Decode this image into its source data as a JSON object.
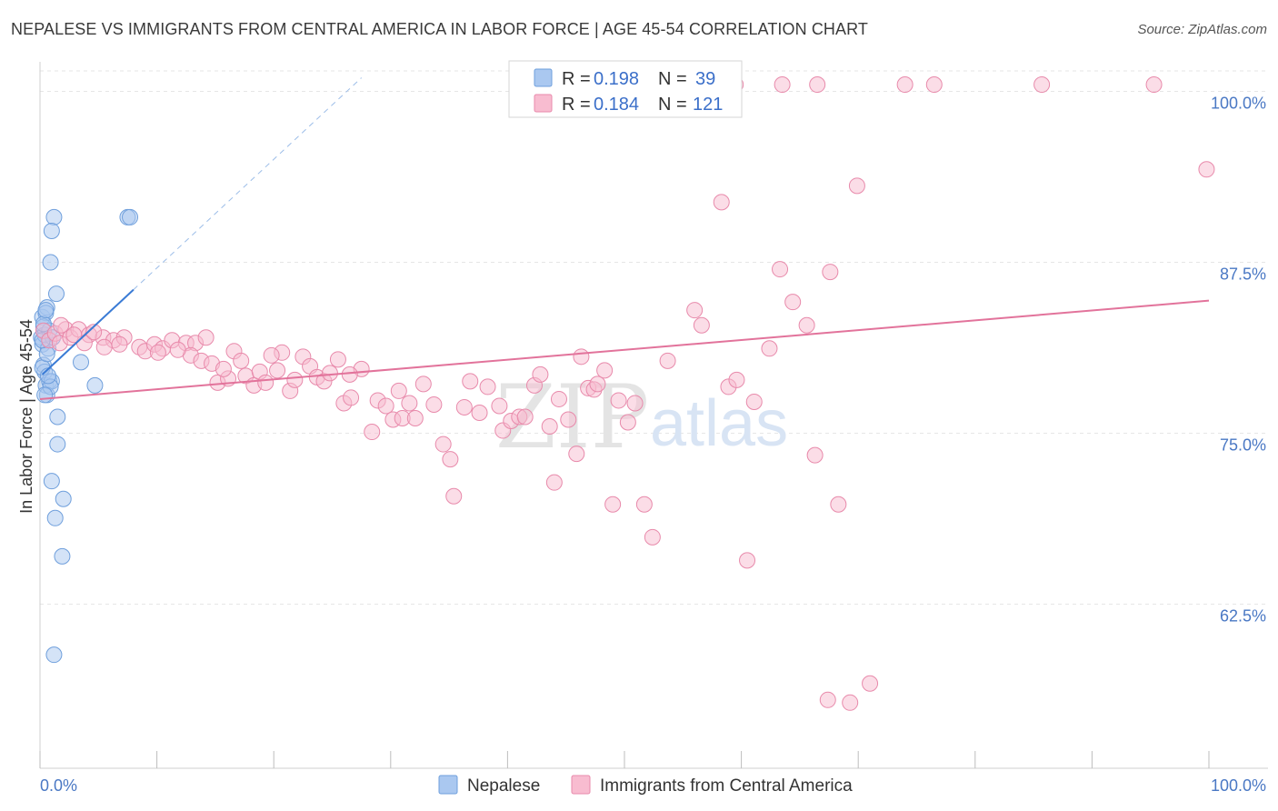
{
  "header": {
    "title": "NEPALESE VS IMMIGRANTS FROM CENTRAL AMERICA IN LABOR FORCE | AGE 45-54 CORRELATION CHART",
    "source": "Source: ZipAtlas.com"
  },
  "watermark": {
    "zip": "ZIP",
    "atlas": "atlas"
  },
  "legend": {
    "rows": [
      {
        "r_label": "R = ",
        "r_value": "0.198",
        "n_label": "N = ",
        "n_value": "39",
        "color": "#aac8f0",
        "stroke": "#6f9fdc"
      },
      {
        "r_label": "R = ",
        "r_value": "0.184",
        "n_label": "N = ",
        "n_value": "121",
        "color": "#f8bcd0",
        "stroke": "#e88aab"
      }
    ]
  },
  "bottom_legend": [
    {
      "label": "Nepalese",
      "color": "#aac8f0",
      "stroke": "#6f9fdc"
    },
    {
      "label": "Immigrants from Central America",
      "color": "#f8bcd0",
      "stroke": "#e88aab"
    }
  ],
  "chart_data": {
    "type": "scatter",
    "title": "NEPALESE VS IMMIGRANTS FROM CENTRAL AMERICA IN LABOR FORCE | AGE 45-54 CORRELATION CHART",
    "xlabel": "",
    "ylabel": "In Labor Force | Age 45-54",
    "xlim": [
      0,
      100
    ],
    "ylim": [
      50.5,
      101.5
    ],
    "x_tick_labels": [
      "0.0%",
      "100.0%"
    ],
    "y_ticks": [
      62.5,
      75.0,
      87.5,
      100.0
    ],
    "y_tick_labels": [
      "62.5%",
      "75.0%",
      "87.5%",
      "100.0%"
    ],
    "grid": true,
    "series": [
      {
        "name": "Nepalese",
        "color": "#aac8f0",
        "stroke": "#6f9fdc",
        "trend_color": "#3a7bd5",
        "trend": {
          "x0": 0.2,
          "y0": 79.3,
          "x1": 8.0,
          "y1": 85.5,
          "dash_to_x": 27.5,
          "dash_to_y": 101.0
        },
        "points": [
          [
            0.1,
            82.0
          ],
          [
            0.2,
            81.5
          ],
          [
            0.3,
            80.0
          ],
          [
            0.4,
            79.5
          ],
          [
            0.5,
            78.5
          ],
          [
            0.2,
            83.5
          ],
          [
            0.6,
            84.2
          ],
          [
            0.5,
            83.8
          ],
          [
            0.3,
            82.8
          ],
          [
            0.7,
            81.2
          ],
          [
            0.8,
            78.8
          ],
          [
            1.0,
            78.8
          ],
          [
            1.2,
            90.8
          ],
          [
            1.0,
            89.8
          ],
          [
            0.9,
            87.5
          ],
          [
            1.4,
            85.2
          ],
          [
            0.6,
            77.8
          ],
          [
            1.5,
            76.2
          ],
          [
            1.5,
            74.2
          ],
          [
            1.0,
            71.5
          ],
          [
            2.0,
            70.2
          ],
          [
            1.3,
            68.8
          ],
          [
            1.9,
            66.0
          ],
          [
            1.2,
            58.8
          ],
          [
            3.5,
            80.2
          ],
          [
            4.7,
            78.5
          ],
          [
            7.5,
            90.8
          ],
          [
            7.7,
            90.8
          ],
          [
            0.2,
            79.8
          ],
          [
            0.4,
            82.2
          ],
          [
            0.8,
            82.5
          ],
          [
            0.9,
            78.4
          ],
          [
            0.3,
            83.0
          ],
          [
            0.6,
            80.8
          ],
          [
            1.1,
            82.0
          ],
          [
            0.5,
            84.0
          ],
          [
            0.2,
            81.8
          ],
          [
            0.7,
            79.2
          ],
          [
            0.4,
            77.8
          ]
        ]
      },
      {
        "name": "Immigrants from Central America",
        "color": "#f8bcd0",
        "stroke": "#e88aab",
        "trend_color": "#e2739b",
        "trend": {
          "x0": 0.0,
          "y0": 77.5,
          "x1": 100.0,
          "y1": 84.7
        },
        "points": [
          [
            0.3,
            82.5
          ],
          [
            0.8,
            81.8
          ],
          [
            1.3,
            82.3
          ],
          [
            1.7,
            81.6
          ],
          [
            2.2,
            82.6
          ],
          [
            2.6,
            82.0
          ],
          [
            3.3,
            82.6
          ],
          [
            4.2,
            82.2
          ],
          [
            5.4,
            82.0
          ],
          [
            6.3,
            81.8
          ],
          [
            7.2,
            82.0
          ],
          [
            8.5,
            81.3
          ],
          [
            9.0,
            81.0
          ],
          [
            9.8,
            81.5
          ],
          [
            10.5,
            81.2
          ],
          [
            11.3,
            81.8
          ],
          [
            12.5,
            81.6
          ],
          [
            13.3,
            81.6
          ],
          [
            14.2,
            82.0
          ],
          [
            12.9,
            80.7
          ],
          [
            13.8,
            80.3
          ],
          [
            14.7,
            80.1
          ],
          [
            15.2,
            78.7
          ],
          [
            16.1,
            79.0
          ],
          [
            16.6,
            81.0
          ],
          [
            17.2,
            80.3
          ],
          [
            17.6,
            79.2
          ],
          [
            18.3,
            78.5
          ],
          [
            18.8,
            79.5
          ],
          [
            19.3,
            78.7
          ],
          [
            20.3,
            79.6
          ],
          [
            20.7,
            80.9
          ],
          [
            21.4,
            78.1
          ],
          [
            21.8,
            78.9
          ],
          [
            22.5,
            80.6
          ],
          [
            23.1,
            79.9
          ],
          [
            23.7,
            79.1
          ],
          [
            24.3,
            78.8
          ],
          [
            24.8,
            79.4
          ],
          [
            25.5,
            80.4
          ],
          [
            26.0,
            77.2
          ],
          [
            26.6,
            77.6
          ],
          [
            27.5,
            79.7
          ],
          [
            28.4,
            75.1
          ],
          [
            28.9,
            77.4
          ],
          [
            29.6,
            77.0
          ],
          [
            30.2,
            76.0
          ],
          [
            31.0,
            76.1
          ],
          [
            31.6,
            77.2
          ],
          [
            32.1,
            76.1
          ],
          [
            32.8,
            78.6
          ],
          [
            33.7,
            77.1
          ],
          [
            34.5,
            74.2
          ],
          [
            35.1,
            73.1
          ],
          [
            35.4,
            70.4
          ],
          [
            36.3,
            76.9
          ],
          [
            36.8,
            78.8
          ],
          [
            37.6,
            76.5
          ],
          [
            38.3,
            78.4
          ],
          [
            39.3,
            77.0
          ],
          [
            39.6,
            75.2
          ],
          [
            40.3,
            75.9
          ],
          [
            41.0,
            76.2
          ],
          [
            41.5,
            76.2
          ],
          [
            42.3,
            78.5
          ],
          [
            42.8,
            79.3
          ],
          [
            43.6,
            75.5
          ],
          [
            44.0,
            71.4
          ],
          [
            44.4,
            77.5
          ],
          [
            45.2,
            76.0
          ],
          [
            45.9,
            73.5
          ],
          [
            46.3,
            80.6
          ],
          [
            46.9,
            78.3
          ],
          [
            47.4,
            78.2
          ],
          [
            47.7,
            78.6
          ],
          [
            48.3,
            79.6
          ],
          [
            49.0,
            69.8
          ],
          [
            49.5,
            77.4
          ],
          [
            50.3,
            75.8
          ],
          [
            50.9,
            77.2
          ],
          [
            51.7,
            69.8
          ],
          [
            52.4,
            67.4
          ],
          [
            53.7,
            80.3
          ],
          [
            56.0,
            84.0
          ],
          [
            56.6,
            82.9
          ],
          [
            58.3,
            91.9
          ],
          [
            58.9,
            78.4
          ],
          [
            59.6,
            78.9
          ],
          [
            60.5,
            65.7
          ],
          [
            61.1,
            77.3
          ],
          [
            62.4,
            81.2
          ],
          [
            63.3,
            87.0
          ],
          [
            64.4,
            84.6
          ],
          [
            65.6,
            82.9
          ],
          [
            66.3,
            73.4
          ],
          [
            67.6,
            86.8
          ],
          [
            68.3,
            69.8
          ],
          [
            69.9,
            93.1
          ],
          [
            71.0,
            56.7
          ],
          [
            67.4,
            55.5
          ],
          [
            69.3,
            55.3
          ],
          [
            56.0,
            100.5
          ],
          [
            59.5,
            100.5
          ],
          [
            63.5,
            100.5
          ],
          [
            66.5,
            100.5
          ],
          [
            74.0,
            100.5
          ],
          [
            76.5,
            100.5
          ],
          [
            85.7,
            100.5
          ],
          [
            95.3,
            100.5
          ],
          [
            99.8,
            94.3
          ],
          [
            5.5,
            81.3
          ],
          [
            3.8,
            81.6
          ],
          [
            1.8,
            82.9
          ],
          [
            2.9,
            82.2
          ],
          [
            4.6,
            82.4
          ],
          [
            6.8,
            81.5
          ],
          [
            10.1,
            80.9
          ],
          [
            11.8,
            81.1
          ],
          [
            15.7,
            79.7
          ],
          [
            19.8,
            80.7
          ],
          [
            26.5,
            79.3
          ],
          [
            30.7,
            78.1
          ]
        ]
      }
    ]
  }
}
